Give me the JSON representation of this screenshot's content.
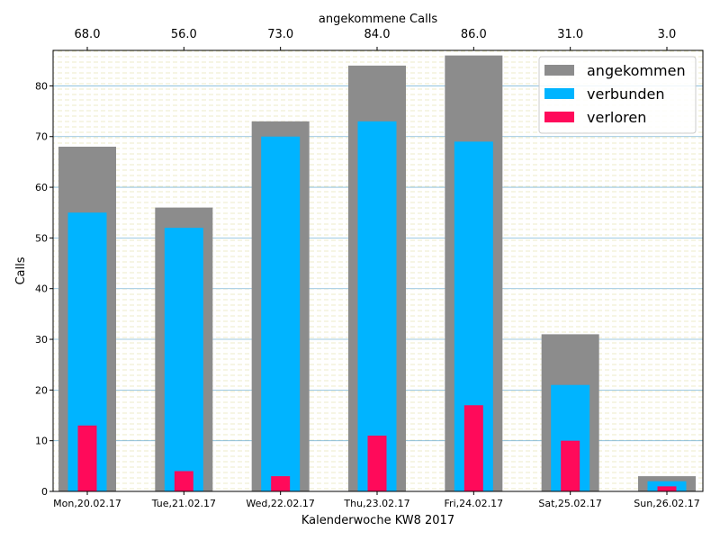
{
  "chart_data": {
    "type": "bar",
    "title": "",
    "top_axis_label": "angekommene Calls",
    "xlabel": "Kalenderwoche KW8 2017",
    "ylabel": "Calls",
    "ylim": [
      0,
      87
    ],
    "yticks": [
      0,
      10,
      20,
      30,
      40,
      50,
      60,
      70,
      80
    ],
    "categories": [
      "Mon,20.02.17",
      "Tue,21.02.17",
      "Wed,22.02.17",
      "Thu,23.02.17",
      "Fri,24.02.17",
      "Sat,25.02.17",
      "Sun,26.02.17"
    ],
    "top_tick_labels": [
      "68.0",
      "56.0",
      "73.0",
      "84.0",
      "86.0",
      "31.0",
      "3.0"
    ],
    "series": [
      {
        "name": "angekommen",
        "color": "#8c8c8c",
        "values": [
          68,
          56,
          73,
          84,
          86,
          31,
          3
        ]
      },
      {
        "name": "verbunden",
        "color": "#00b4ff",
        "values": [
          55,
          52,
          70,
          73,
          69,
          21,
          2
        ]
      },
      {
        "name": "verloren",
        "color": "#ff0a5a",
        "values": [
          13,
          4,
          3,
          11,
          17,
          10,
          1
        ]
      }
    ],
    "grid": true,
    "grid_color": "#7fb8d8",
    "legend_position": "top-right"
  }
}
